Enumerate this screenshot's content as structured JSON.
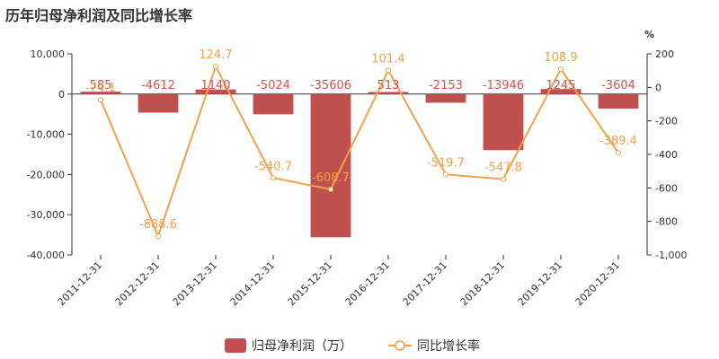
{
  "chart_data": {
    "type": "bar",
    "title": "历年归母净利润及同比增长率",
    "categories": [
      "2011-12-31",
      "2012-12-31",
      "2013-12-31",
      "2014-12-31",
      "2015-12-31",
      "2016-12-31",
      "2017-12-31",
      "2018-12-31",
      "2019-12-31",
      "2020-12-31"
    ],
    "series": [
      {
        "name": "归母净利润（万）",
        "type": "bar",
        "axis": "left",
        "color": "#c0504d",
        "values": [
          585,
          -4612,
          1140,
          -5024,
          -35606,
          513,
          -2153,
          -13946,
          1245,
          -3604
        ],
        "labels": [
          "585",
          "-4612",
          "1140",
          "-5024",
          "-35606",
          "513",
          "-2153",
          "-13946",
          "1245",
          "-3604"
        ]
      },
      {
        "name": "同比增长率",
        "type": "line",
        "axis": "right",
        "color": "#f5a04a",
        "values": [
          -74.1,
          -888.6,
          124.7,
          -540.7,
          -608.7,
          101.4,
          -519.7,
          -547.8,
          108.9,
          -389.4
        ],
        "labels": [
          "-74.1",
          "-888.6",
          "124.7",
          "-540.7",
          "-608.7",
          "101.4",
          "-519.7",
          "-547.8",
          "108.9",
          "-389.4"
        ]
      }
    ],
    "y_left": {
      "ylim": [
        -40000,
        10000
      ],
      "ticks": [
        10000,
        0,
        -10000,
        -20000,
        -30000,
        -40000
      ],
      "tick_labels": [
        "10,000",
        "0",
        "-10,000",
        "-20,000",
        "-30,000",
        "-40,000"
      ]
    },
    "y_right": {
      "unit": "%",
      "ylim": [
        -1000,
        200
      ],
      "ticks": [
        200,
        0,
        -200,
        -400,
        -600,
        -800,
        -1000
      ],
      "tick_labels": [
        "200",
        "0",
        "-200",
        "-400",
        "-600",
        "-800",
        "-1,000"
      ]
    },
    "grid": false,
    "legend_position": "bottom-center",
    "label_color": "#d9534f"
  }
}
